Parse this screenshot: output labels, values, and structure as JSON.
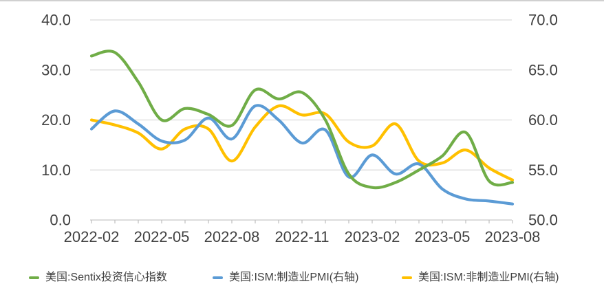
{
  "colors": {
    "background": "#FFFFFF",
    "top_strip": "#D0D0D0",
    "grid": "#D9D9D9",
    "axis_line": "#C6C6C6",
    "tick": "#BFBFBF",
    "axis_text": "#404040",
    "legend_text": "#3F3F3F"
  },
  "chart_data": {
    "type": "line",
    "smoothing": true,
    "grid": "horizontal",
    "legend_position": "bottom",
    "x": [
      "2022-02",
      "2022-03",
      "2022-04",
      "2022-05",
      "2022-06",
      "2022-07",
      "2022-08",
      "2022-09",
      "2022-10",
      "2022-11",
      "2022-12",
      "2023-01",
      "2023-02",
      "2023-03",
      "2023-04",
      "2023-05",
      "2023-06",
      "2023-07",
      "2023-08"
    ],
    "x_axis": {
      "label_indices": [
        0,
        3,
        6,
        9,
        12,
        15,
        18
      ],
      "labels": [
        "2022-02",
        "2022-05",
        "2022-08",
        "2022-11",
        "2023-02",
        "2023-05",
        "2023-08"
      ]
    },
    "left_axis": {
      "range": [
        0,
        40
      ],
      "tick_step": 10,
      "tick_values_top_to_bottom": [
        40,
        30,
        20,
        10,
        0
      ],
      "tick_labels_top_to_bottom": [
        "40.0",
        "30.0",
        "20.0",
        "10.0",
        "0.0"
      ]
    },
    "right_axis": {
      "range": [
        50,
        70
      ],
      "tick_step": 5,
      "tick_labels_top_to_bottom": [
        "70.0",
        "65.0",
        "60.0",
        "55.0",
        "50.0"
      ]
    },
    "series": [
      {
        "name": "美国:Sentix投资信心指数",
        "axis": "left",
        "color": "#70AD47",
        "values": [
          32.8,
          33.5,
          27.6,
          20.0,
          22.3,
          21.1,
          18.9,
          26.0,
          24.2,
          25.5,
          20.0,
          9.2,
          6.5,
          7.5,
          10.0,
          12.8,
          17.5,
          7.8,
          7.5
        ]
      },
      {
        "name": "美国:ISM:制造业PMI(右轴)",
        "axis": "right",
        "color": "#5B9BD5",
        "values": [
          59.1,
          60.9,
          59.6,
          57.9,
          58.0,
          60.2,
          58.1,
          61.4,
          60.0,
          57.7,
          59.0,
          54.3,
          56.5,
          54.6,
          55.6,
          53.1,
          52.1,
          51.9,
          51.6
        ]
      },
      {
        "name": "美国:ISM:非制造业PMI(右轴)",
        "axis": "right",
        "color": "#FFC000",
        "values": [
          60.0,
          59.5,
          58.7,
          57.1,
          59.1,
          59.1,
          55.9,
          59.3,
          61.4,
          60.5,
          60.6,
          57.8,
          57.4,
          59.6,
          55.9,
          55.7,
          57.0,
          55.2,
          54.0
        ]
      }
    ]
  }
}
